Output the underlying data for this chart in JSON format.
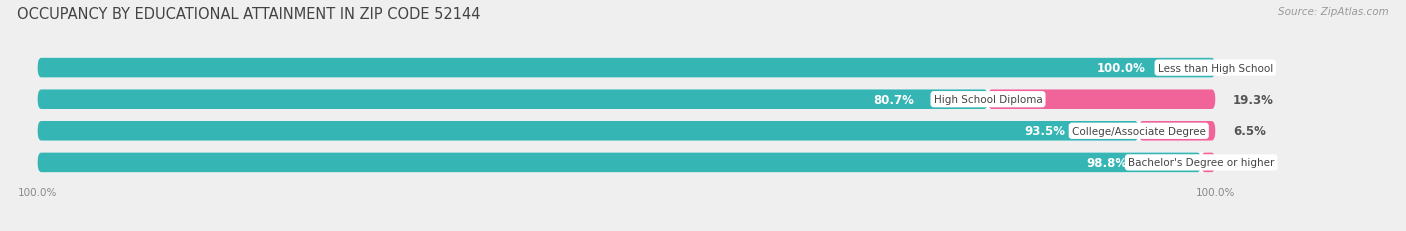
{
  "title": "OCCUPANCY BY EDUCATIONAL ATTAINMENT IN ZIP CODE 52144",
  "source": "Source: ZipAtlas.com",
  "categories": [
    "Less than High School",
    "High School Diploma",
    "College/Associate Degree",
    "Bachelor's Degree or higher"
  ],
  "owner_values": [
    100.0,
    80.7,
    93.5,
    98.8
  ],
  "renter_values": [
    0.0,
    19.3,
    6.5,
    1.2
  ],
  "owner_color": "#36b5b5",
  "owner_light_color": "#7fd4d4",
  "renter_color": "#f0649a",
  "renter_light_color": "#f8b8cc",
  "background_color": "#efefef",
  "bar_background": "#ffffff",
  "bar_height": 0.62,
  "title_fontsize": 10.5,
  "source_fontsize": 7.5,
  "bar_label_fontsize": 8.5,
  "cat_label_fontsize": 7.5,
  "legend_fontsize": 8,
  "axis_label_fontsize": 7.5,
  "y_bottom_label": "100.0%",
  "y_top_label": "100.0%",
  "total": 100.0,
  "xlim_left": -2,
  "xlim_right": 115
}
